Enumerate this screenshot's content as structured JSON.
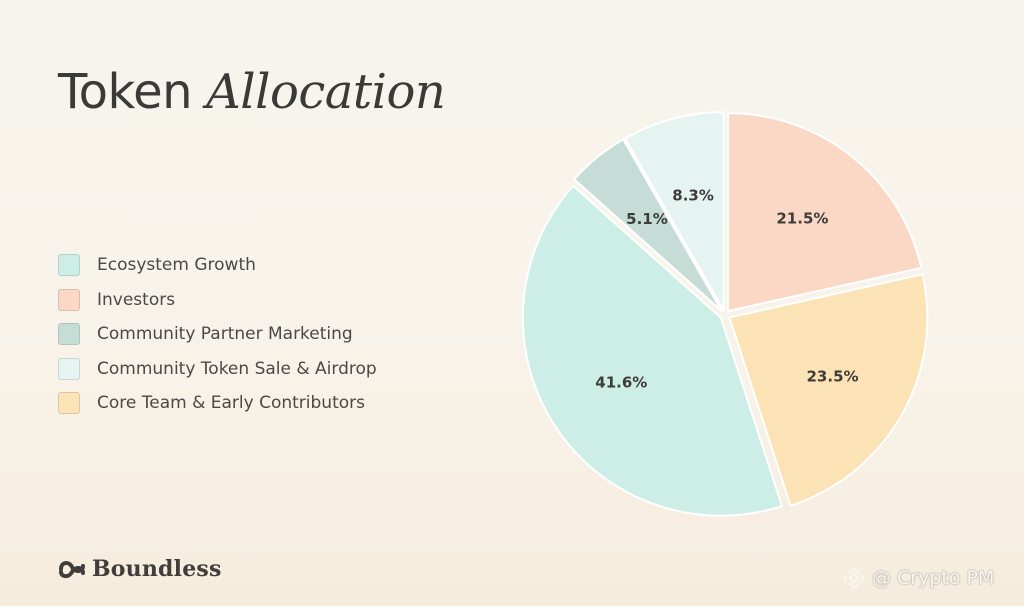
{
  "header": {
    "title_main": "Token",
    "title_italic": "Allocation"
  },
  "brand": {
    "name": "Boundless",
    "icon": "boundless-logo-icon"
  },
  "watermark": {
    "text": "@ Crypto PM",
    "icon": "binance-logo-icon"
  },
  "chart_data": {
    "type": "pie",
    "title": "Token Allocation",
    "legend_position": "left",
    "slices": [
      {
        "name": "Investors",
        "value": 21.5,
        "label": "21.5%",
        "color": "#fbd7c5"
      },
      {
        "name": "Core Team & Early Contributors",
        "value": 23.5,
        "label": "23.5%",
        "color": "#fbe3b6"
      },
      {
        "name": "Ecosystem Growth",
        "value": 41.6,
        "label": "41.6%",
        "color": "#cdeee6"
      },
      {
        "name": "Community Partner Marketing",
        "value": 5.1,
        "label": "5.1%",
        "color": "#c6dcd6"
      },
      {
        "name": "Community Token Sale & Airdrop",
        "value": 8.3,
        "label": "8.3%",
        "color": "#e6f4f1"
      }
    ],
    "legend": [
      {
        "name": "Ecosystem Growth",
        "color": "#cdeee6"
      },
      {
        "name": "Investors",
        "color": "#fbd7c5"
      },
      {
        "name": "Community Partner Marketing",
        "color": "#c6dcd6"
      },
      {
        "name": "Community Token Sale & Airdrop",
        "color": "#e6f4f1"
      },
      {
        "name": "Core Team & Early Contributors",
        "color": "#fbe3b6"
      }
    ]
  }
}
